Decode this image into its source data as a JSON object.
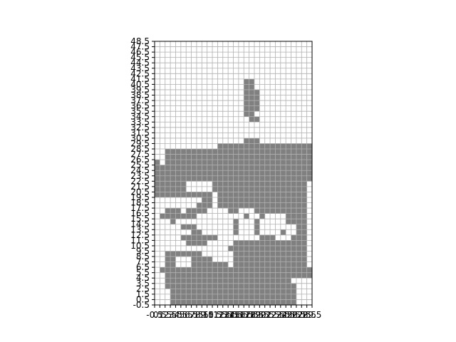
{
  "chart_data": {
    "type": "heatmap",
    "title": "",
    "xlabel": "",
    "ylabel": "",
    "xlim": [
      -0.5,
      29.5
    ],
    "ylim": [
      -0.5,
      48.5
    ],
    "grid": true,
    "colors": {
      "occupied": "#808080",
      "free": "#ffffff",
      "grid": "#b0b0b0",
      "axis": "#000000"
    },
    "x_tick_labels": [
      "-0.5",
      "0.5",
      "1.5",
      "2.5",
      "3.5",
      "4.5",
      "5.5",
      "6.5",
      "7.5",
      "8.5",
      "9.5",
      "10.5",
      "11.5",
      "12.5",
      "13.5",
      "14.5",
      "15.5",
      "16.5",
      "17.5",
      "18.5",
      "19.5",
      "20.5",
      "21.5",
      "22.5",
      "23.5",
      "24.5",
      "25.5",
      "26.5",
      "27.5",
      "28.5",
      "29.5"
    ],
    "y_tick_labels": [
      "-0.5",
      "0.5",
      "1.5",
      "2.5",
      "3.5",
      "4.5",
      "5.5",
      "6.5",
      "7.5",
      "8.5",
      "9.5",
      "10.5",
      "11.5",
      "12.5",
      "13.5",
      "14.5",
      "15.5",
      "16.5",
      "17.5",
      "18.5",
      "19.5",
      "20.5",
      "21.5",
      "22.5",
      "23.5",
      "24.5",
      "25.5",
      "26.5",
      "27.5",
      "28.5",
      "29.5",
      "30.5",
      "31.5",
      "32.5",
      "33.5",
      "34.5",
      "35.5",
      "36.5",
      "37.5",
      "38.5",
      "39.5",
      "40.5",
      "41.5",
      "42.5",
      "43.5",
      "44.5",
      "45.5",
      "46.5",
      "47.5",
      "48.5"
    ],
    "rows_top_to_bottom": [
      "..............................",
      "..............................",
      "..............................",
      "..............................",
      "..............................",
      "..............................",
      "..............................",
      ".................##...........",
      ".................##...........",
      ".................###..........",
      ".................###..........",
      ".................###..........",
      ".................###..........",
      ".................##...........",
      "..................##..........",
      "..............................",
      "..............................",
      "..............................",
      ".................###..........",
      "............##################",
      "..############################",
      "..############################",
      "#.############################",
      "##############################",
      "##############################",
      "##############################",
      "######.....##################",
      "######.....##################",
      "###########.#################",
      ".........##.#################",
      "........###.#################",
      "..###.####....##...##########",
      ".#######.........#..#....####",
      "...#...........#...#.....####",
      ".....###.......#...#.......##",
      ".......##......#...#....#..##",
      ".....#######........###...###",
      "......####.....##############",
      "..............###############",
      "..#######......##############",
      "..##...####....##############",
      "..##...#######.##############",
      ".#############################",
      "..############################",
      "..########################....",
      "..#########################...",
      "...########################...",
      "...########################...",
      "...########################..."
    ]
  }
}
